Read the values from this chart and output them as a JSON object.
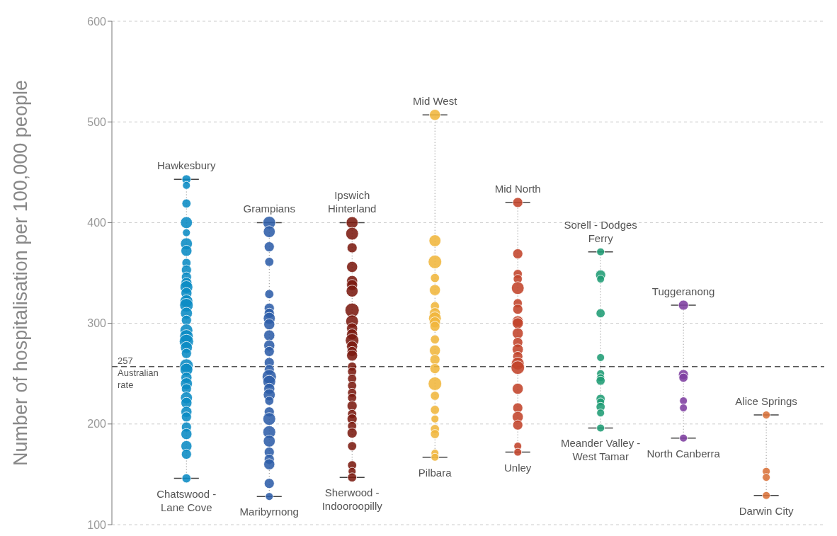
{
  "chart_data": {
    "type": "bubble",
    "ylabel": "Number of hospitalisation per 100,000 people",
    "categories": [
      null,
      null,
      null,
      null,
      null,
      null,
      null,
      null
    ],
    "ylim": [
      100,
      600
    ],
    "yticks": [
      100,
      200,
      300,
      400,
      500,
      600
    ],
    "grid": "y",
    "marker": "circle",
    "ref_lines": [
      {
        "axis": "y",
        "value": 257,
        "label": "257 Australian rate",
        "line_style": "dashed",
        "color": "#555555"
      }
    ],
    "annotations": [
      {
        "text": "Hawkesbury",
        "y": 443
      },
      {
        "text": "Chatswood - Lane Cove",
        "y": 146
      },
      {
        "text": "Grampians",
        "y": 400
      },
      {
        "text": "Maribyrnong",
        "y": 128
      },
      {
        "text": "Ipswich Hinterland",
        "y": 400
      },
      {
        "text": "Sherwood - Indooroopilly",
        "y": 147
      },
      {
        "text": "Mid West",
        "y": 507
      },
      {
        "text": "Pilbara",
        "y": 167
      },
      {
        "text": "Mid North",
        "y": 420
      },
      {
        "text": "Unley",
        "y": 172
      },
      {
        "text": "Sorell - Dodges Ferry",
        "y": 371
      },
      {
        "text": "Meander Valley - West Tamar",
        "y": 196
      },
      {
        "text": "Tuggeranong",
        "y": 318
      },
      {
        "text": "North Canberra",
        "y": 186
      },
      {
        "text": "Alice Springs",
        "y": 209
      },
      {
        "text": "Darwin City",
        "y": 129
      }
    ],
    "series": [
      {
        "values": [
          443,
          400,
          400,
          507,
          420,
          371,
          318,
          209
        ],
        "sizes": [
          0.4,
          0.8,
          0.7,
          0.6,
          0.5,
          0.3,
          0.5,
          0.3
        ],
        "colors": [
          "#0a8bc4",
          "#2d5da8",
          "#7b1a10",
          "#f0b63c",
          "#c2432a",
          "#1f9c74",
          "#7e3fa0",
          "#d9723a"
        ]
      },
      {
        "values": [
          437,
          391,
          389,
          382,
          369,
          348,
          249,
          153
        ],
        "sizes": [
          0.3,
          0.7,
          0.8,
          0.7,
          0.5,
          0.5,
          0.5,
          0.3
        ],
        "colors": [
          "#0a8bc4",
          "#2d5da8",
          "#7b1a10",
          "#f0b63c",
          "#c2432a",
          "#1f9c74",
          "#7e3fa0",
          "#d9723a"
        ]
      },
      {
        "values": [
          419,
          376,
          375,
          361,
          349,
          344,
          246,
          147
        ],
        "sizes": [
          0.4,
          0.5,
          0.5,
          0.9,
          0.4,
          0.3,
          0.4,
          0.3
        ],
        "colors": [
          "#0a8bc4",
          "#2d5da8",
          "#7b1a10",
          "#f0b63c",
          "#c2432a",
          "#1f9c74",
          "#7e3fa0",
          "#d9723a"
        ]
      },
      {
        "values": [
          400,
          361,
          356,
          345,
          344,
          310,
          223,
          129
        ],
        "sizes": [
          0.7,
          0.4,
          0.6,
          0.4,
          0.4,
          0.4,
          0.3,
          0.3
        ],
        "colors": [
          "#0a8bc4",
          "#2d5da8",
          "#7b1a10",
          "#f0b63c",
          "#c2432a",
          "#1f9c74",
          "#7e3fa0",
          "#d9723a"
        ]
      },
      {
        "values": [
          390,
          329,
          342,
          333,
          335,
          266,
          216,
          null
        ],
        "sizes": [
          0.3,
          0.4,
          0.6,
          0.6,
          0.8,
          0.3,
          0.3,
          null
        ],
        "colors": [
          "#0a8bc4",
          "#2d5da8",
          "#7b1a10",
          "#f0b63c",
          "#c2432a",
          "#1f9c74",
          "#7e3fa0",
          null
        ]
      },
      {
        "values": [
          379,
          315,
          338,
          317,
          320,
          250,
          186,
          null
        ],
        "sizes": [
          0.7,
          0.5,
          0.6,
          0.4,
          0.4,
          0.3,
          0.3,
          null
        ],
        "colors": [
          "#0a8bc4",
          "#2d5da8",
          "#7b1a10",
          "#f0b63c",
          "#c2432a",
          "#1f9c74",
          "#7e3fa0",
          null
        ]
      },
      {
        "values": [
          372,
          310,
          332,
          310,
          314,
          246,
          null,
          null
        ],
        "sizes": [
          0.6,
          0.5,
          0.7,
          0.6,
          0.5,
          0.3,
          null,
          null
        ],
        "colors": [
          "#0a8bc4",
          "#2d5da8",
          "#7b1a10",
          "#f0b63c",
          "#c2432a",
          "#1f9c74",
          null,
          null
        ]
      },
      {
        "values": [
          360,
          305,
          313,
          305,
          302,
          243,
          null,
          null
        ],
        "sizes": [
          0.4,
          0.7,
          1,
          0.8,
          0.6,
          0.4,
          null,
          null
        ],
        "colors": [
          "#0a8bc4",
          "#2d5da8",
          "#7b1a10",
          "#f0b63c",
          "#c2432a",
          "#1f9c74",
          null,
          null
        ]
      },
      {
        "values": [
          353,
          299,
          302,
          301,
          300,
          225,
          null,
          null
        ],
        "sizes": [
          0.5,
          0.6,
          0.8,
          0.6,
          0.6,
          0.4,
          null,
          null
        ],
        "colors": [
          "#0a8bc4",
          "#2d5da8",
          "#7b1a10",
          "#f0b63c",
          "#c2432a",
          "#1f9c74",
          null,
          null
        ]
      },
      {
        "values": [
          346,
          288,
          295,
          297,
          290,
          222,
          null,
          null
        ],
        "sizes": [
          0.5,
          0.6,
          0.6,
          0.5,
          0.6,
          0.3,
          null,
          null
        ],
        "colors": [
          "#0a8bc4",
          "#2d5da8",
          "#7b1a10",
          "#f0b63c",
          "#c2432a",
          "#1f9c74",
          null,
          null
        ]
      },
      {
        "values": [
          340,
          278,
          289,
          284,
          281,
          217,
          null,
          null
        ],
        "sizes": [
          0.6,
          0.6,
          0.6,
          0.4,
          0.5,
          0.4,
          null,
          null
        ],
        "colors": [
          "#0a8bc4",
          "#2d5da8",
          "#7b1a10",
          "#f0b63c",
          "#c2432a",
          "#1f9c74",
          null,
          null
        ]
      },
      {
        "values": [
          336,
          272,
          283,
          273,
          274,
          211,
          null,
          null
        ],
        "sizes": [
          0.8,
          0.5,
          0.9,
          0.6,
          0.6,
          0.3,
          null,
          null
        ],
        "colors": [
          "#0a8bc4",
          "#2d5da8",
          "#7b1a10",
          "#f0b63c",
          "#c2432a",
          "#1f9c74",
          null,
          null
        ]
      },
      {
        "values": [
          330,
          261,
          277,
          264,
          267,
          196,
          null,
          null
        ],
        "sizes": [
          0.6,
          0.5,
          0.6,
          0.5,
          0.5,
          0.3,
          null,
          null
        ],
        "colors": [
          "#0a8bc4",
          "#2d5da8",
          "#7b1a10",
          "#f0b63c",
          "#c2432a",
          "#1f9c74",
          null,
          null
        ]
      },
      {
        "values": [
          322,
          254,
          272,
          255,
          260,
          null,
          null,
          null
        ],
        "sizes": [
          0.8,
          0.5,
          0.5,
          0.5,
          0.8,
          null,
          null,
          null
        ],
        "colors": [
          "#0a8bc4",
          "#2d5da8",
          "#7b1a10",
          "#f0b63c",
          "#c2432a",
          null,
          null,
          null
        ]
      },
      {
        "values": [
          318,
          247,
          268,
          240,
          256,
          null,
          null,
          null
        ],
        "sizes": [
          0.9,
          1,
          0.6,
          0.9,
          0.9,
          null,
          null,
          null
        ],
        "colors": [
          "#0a8bc4",
          "#2d5da8",
          "#7b1a10",
          "#f0b63c",
          "#c2432a",
          null,
          null,
          null
        ]
      },
      {
        "values": [
          310,
          242,
          257,
          228,
          235,
          null,
          null,
          null
        ],
        "sizes": [
          0.7,
          0.8,
          0.4,
          0.4,
          0.6,
          null,
          null,
          null
        ],
        "colors": [
          "#0a8bc4",
          "#2d5da8",
          "#7b1a10",
          "#f0b63c",
          "#c2432a",
          null,
          null,
          null
        ]
      },
      {
        "values": [
          303,
          235,
          252,
          214,
          216,
          null,
          null,
          null
        ],
        "sizes": [
          0.5,
          0.6,
          0.4,
          0.4,
          0.5,
          null,
          null,
          null
        ],
        "colors": [
          "#0a8bc4",
          "#2d5da8",
          "#7b1a10",
          "#f0b63c",
          "#c2432a",
          null,
          null,
          null
        ]
      },
      {
        "values": [
          293,
          229,
          245,
          205,
          207,
          null,
          null,
          null
        ],
        "sizes": [
          0.8,
          0.7,
          0.4,
          0.3,
          0.6,
          null,
          null,
          null
        ],
        "colors": [
          "#0a8bc4",
          "#2d5da8",
          "#7b1a10",
          "#f0b63c",
          "#c2432a",
          null,
          null,
          null
        ]
      },
      {
        "values": [
          287,
          223,
          238,
          195,
          199,
          null,
          null,
          null
        ],
        "sizes": [
          0.9,
          0.4,
          0.4,
          0.4,
          0.5,
          null,
          null,
          null
        ],
        "colors": [
          "#0a8bc4",
          "#2d5da8",
          "#7b1a10",
          "#f0b63c",
          "#c2432a",
          null,
          null,
          null
        ]
      },
      {
        "values": [
          282,
          212,
          231,
          190,
          178,
          null,
          null,
          null
        ],
        "sizes": [
          1,
          0.5,
          0.4,
          0.4,
          0.3,
          null,
          null,
          null
        ],
        "colors": [
          "#0a8bc4",
          "#2d5da8",
          "#7b1a10",
          "#f0b63c",
          "#c2432a",
          null,
          null,
          null
        ]
      },
      {
        "values": [
          276,
          205,
          226,
          171,
          172,
          null,
          null,
          null
        ],
        "sizes": [
          0.7,
          0.8,
          0.4,
          0.3,
          0.3,
          null,
          null,
          null
        ],
        "colors": [
          "#0a8bc4",
          "#2d5da8",
          "#7b1a10",
          "#f0b63c",
          "#c2432a",
          null,
          null,
          null
        ]
      },
      {
        "values": [
          270,
          192,
          218,
          167,
          null,
          null,
          null,
          null
        ],
        "sizes": [
          0.5,
          0.8,
          0.5,
          0.3,
          null,
          null,
          null,
          null
        ],
        "colors": [
          "#0a8bc4",
          "#2d5da8",
          "#7b1a10",
          "#f0b63c",
          null,
          null,
          null,
          null
        ]
      },
      {
        "values": [
          258,
          183,
          210,
          null,
          null,
          null,
          null,
          null
        ],
        "sizes": [
          0.9,
          0.7,
          0.4,
          null,
          null,
          null,
          null,
          null
        ],
        "colors": [
          "#0a8bc4",
          "#2d5da8",
          "#7b1a10",
          null,
          null,
          null,
          null,
          null
        ]
      },
      {
        "values": [
          254,
          172,
          205,
          null,
          null,
          null,
          null,
          null
        ],
        "sizes": [
          0.8,
          0.5,
          0.5,
          null,
          null,
          null,
          null,
          null
        ],
        "colors": [
          "#0a8bc4",
          "#2d5da8",
          "#7b1a10",
          null,
          null,
          null,
          null,
          null
        ]
      },
      {
        "values": [
          246,
          165,
          198,
          null,
          null,
          null,
          null,
          null
        ],
        "sizes": [
          0.6,
          0.5,
          0.4,
          null,
          null,
          null,
          null,
          null
        ],
        "colors": [
          "#0a8bc4",
          "#2d5da8",
          "#7b1a10",
          null,
          null,
          null,
          null,
          null
        ]
      },
      {
        "values": [
          240,
          160,
          191,
          null,
          null,
          null,
          null,
          null
        ],
        "sizes": [
          0.7,
          0.6,
          0.5,
          null,
          null,
          null,
          null,
          null
        ],
        "colors": [
          "#0a8bc4",
          "#2d5da8",
          "#7b1a10",
          null,
          null,
          null,
          null,
          null
        ]
      },
      {
        "values": [
          235,
          141,
          178,
          null,
          null,
          null,
          null,
          null
        ],
        "sizes": [
          0.5,
          0.5,
          0.4,
          null,
          null,
          null,
          null,
          null
        ],
        "colors": [
          "#0a8bc4",
          "#2d5da8",
          "#7b1a10",
          null,
          null,
          null,
          null,
          null
        ]
      },
      {
        "values": [
          226,
          128,
          159,
          null,
          null,
          null,
          null,
          null
        ],
        "sizes": [
          0.7,
          0.3,
          0.4,
          null,
          null,
          null,
          null,
          null
        ],
        "colors": [
          "#0a8bc4",
          "#2d5da8",
          "#7b1a10",
          null,
          null,
          null,
          null,
          null
        ]
      },
      {
        "values": [
          221,
          null,
          153,
          null,
          null,
          null,
          null,
          null
        ],
        "sizes": [
          0.6,
          null,
          0.3,
          null,
          null,
          null,
          null,
          null
        ],
        "colors": [
          "#0a8bc4",
          null,
          "#7b1a10",
          null,
          null,
          null,
          null,
          null
        ]
      },
      {
        "values": [
          212,
          null,
          147,
          null,
          null,
          null,
          null,
          null
        ],
        "sizes": [
          0.6,
          null,
          0.4,
          null,
          null,
          null,
          null,
          null
        ],
        "colors": [
          "#0a8bc4",
          null,
          "#7b1a10",
          null,
          null,
          null,
          null,
          null
        ]
      },
      {
        "values": [
          207,
          null,
          null,
          null,
          null,
          null,
          null,
          null
        ],
        "sizes": [
          0.5,
          null,
          null,
          null,
          null,
          null,
          null,
          null
        ],
        "colors": [
          "#0a8bc4",
          null,
          null,
          null,
          null,
          null,
          null,
          null
        ]
      },
      {
        "values": [
          197,
          null,
          null,
          null,
          null,
          null,
          null,
          null
        ],
        "sizes": [
          0.5,
          null,
          null,
          null,
          null,
          null,
          null,
          null
        ],
        "colors": [
          "#0a8bc4",
          null,
          null,
          null,
          null,
          null,
          null,
          null
        ]
      },
      {
        "values": [
          190,
          null,
          null,
          null,
          null,
          null,
          null,
          null
        ],
        "sizes": [
          0.6,
          null,
          null,
          null,
          null,
          null,
          null,
          null
        ],
        "colors": [
          "#0a8bc4",
          null,
          null,
          null,
          null,
          null,
          null,
          null
        ]
      },
      {
        "values": [
          178,
          null,
          null,
          null,
          null,
          null,
          null,
          null
        ],
        "sizes": [
          0.6,
          null,
          null,
          null,
          null,
          null,
          null,
          null
        ],
        "colors": [
          "#0a8bc4",
          null,
          null,
          null,
          null,
          null,
          null,
          null
        ]
      },
      {
        "values": [
          170,
          null,
          null,
          null,
          null,
          null,
          null,
          null
        ],
        "sizes": [
          0.5,
          null,
          null,
          null,
          null,
          null,
          null,
          null
        ],
        "colors": [
          "#0a8bc4",
          null,
          null,
          null,
          null,
          null,
          null,
          null
        ]
      },
      {
        "values": [
          146,
          null,
          null,
          null,
          null,
          null,
          null,
          null
        ],
        "sizes": [
          0.4,
          null,
          null,
          null,
          null,
          null,
          null,
          null
        ],
        "colors": [
          "#0a8bc4",
          null,
          null,
          null,
          null,
          null,
          null,
          null
        ]
      }
    ]
  }
}
